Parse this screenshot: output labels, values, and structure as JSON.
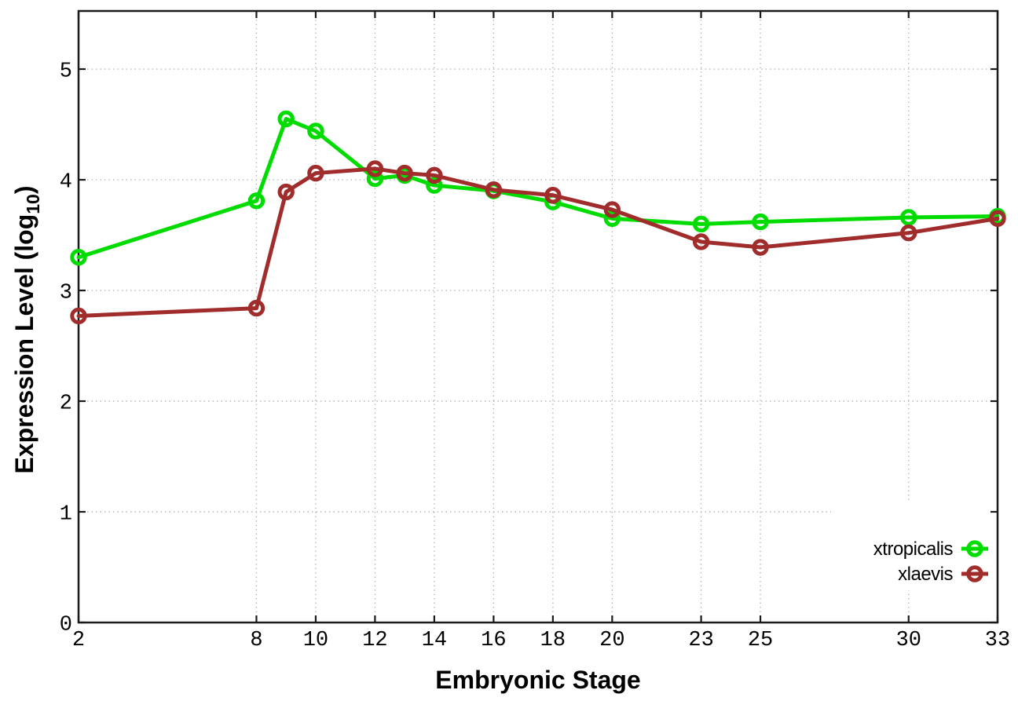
{
  "chart_data": {
    "type": "line",
    "title": "",
    "xlabel": "Embryonic Stage",
    "ylabel": "Expression Level (log10)",
    "ylabel_rich": {
      "main": "Expression Level (log",
      "sub": "10",
      "close": ")"
    },
    "x_ticks": [
      2,
      8,
      10,
      12,
      14,
      16,
      18,
      20,
      23,
      25,
      30,
      33
    ],
    "y_ticks": [
      0,
      1,
      2,
      3,
      4,
      5
    ],
    "xlim": [
      2,
      33
    ],
    "ylim": [
      0,
      5.525
    ],
    "grid": true,
    "grid_style": "dotted",
    "legend_position": "bottom-right",
    "x": [
      2,
      8,
      9,
      10,
      12,
      13,
      14,
      16,
      18,
      20,
      23,
      25,
      30,
      33
    ],
    "series": [
      {
        "name": "xtropicalis",
        "color": "#00dc00",
        "marker": "open-circle",
        "values": [
          3.3,
          3.81,
          4.55,
          4.44,
          4.01,
          4.04,
          3.95,
          3.9,
          3.8,
          3.65,
          3.6,
          3.62,
          3.66,
          3.67
        ]
      },
      {
        "name": "xlaevis",
        "color": "#a02c2c",
        "marker": "open-circle",
        "values": [
          2.77,
          2.84,
          3.89,
          4.06,
          4.1,
          4.06,
          4.04,
          3.91,
          3.86,
          3.73,
          3.44,
          3.39,
          3.52,
          3.65
        ]
      }
    ],
    "colors": {
      "axis": "#1a1a1a",
      "grid": "#b8b8b8",
      "background": "#ffffff"
    }
  }
}
